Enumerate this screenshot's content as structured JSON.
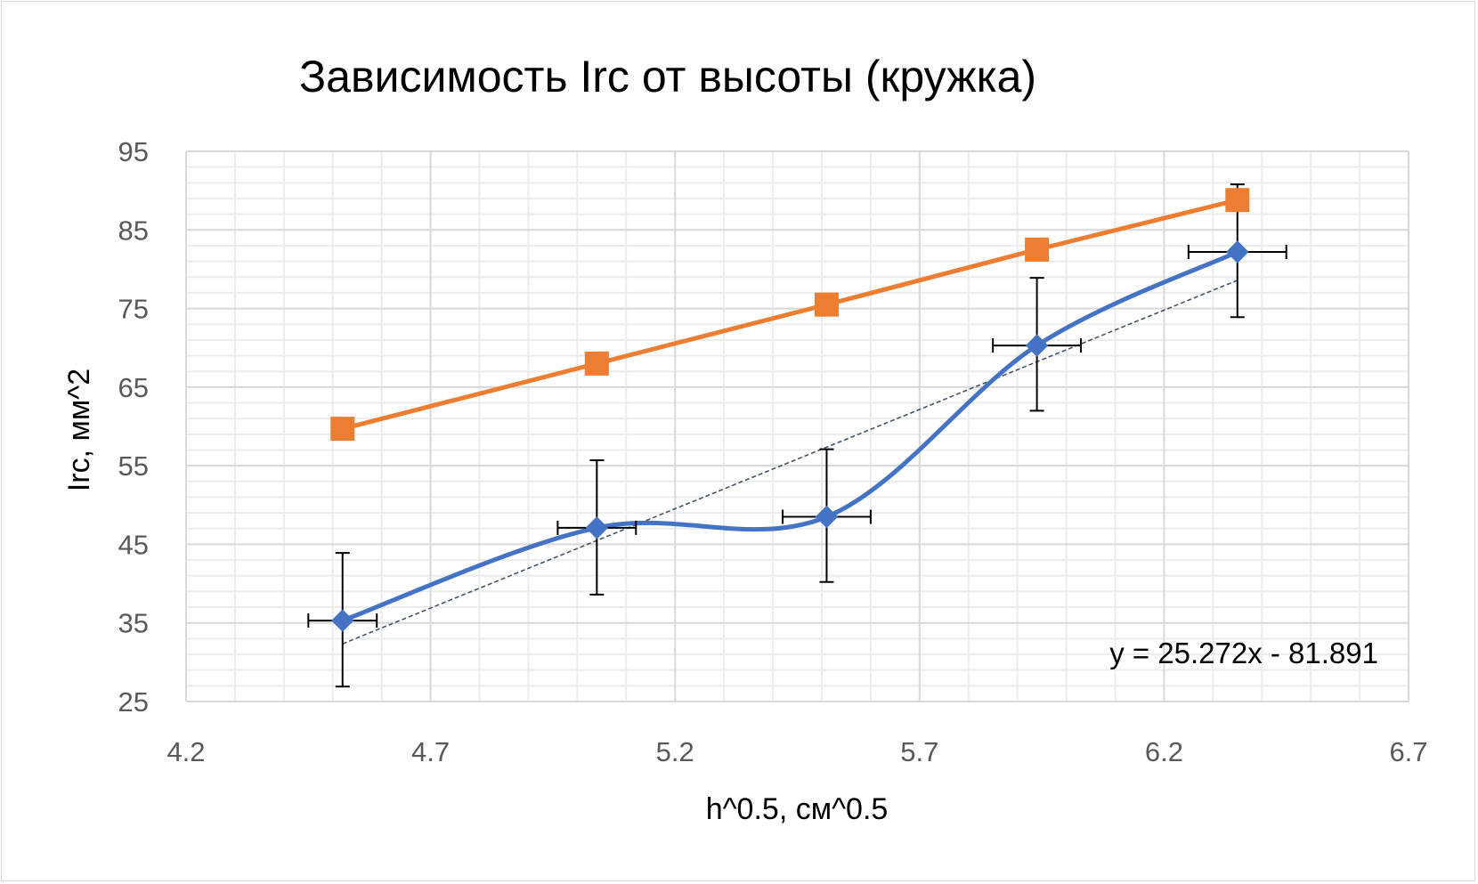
{
  "chart_data": {
    "type": "scatter",
    "title": "Зависимость Irc от высоты (кружка)",
    "xlabel": "h^0.5, см^0.5",
    "ylabel": "Irc, мм^2",
    "xlim": [
      4.2,
      6.7
    ],
    "ylim": [
      25,
      95
    ],
    "x_major_step": 0.5,
    "y_major_step": 10,
    "x_ticks": [
      "4.2",
      "4.7",
      "5.2",
      "5.7",
      "6.2",
      "6.7"
    ],
    "y_ticks": [
      "25",
      "35",
      "45",
      "55",
      "65",
      "75",
      "85",
      "95"
    ],
    "grid": true,
    "legend": "none",
    "series": [
      {
        "marker": "diamond",
        "line": "smooth",
        "color": "#4472c4",
        "x": [
          4.52,
          5.04,
          5.51,
          5.94,
          6.35
        ],
        "y": [
          35.3,
          47.1,
          48.5,
          70.3,
          82.2
        ],
        "x_error": [
          0.07,
          0.08,
          0.09,
          0.09,
          0.1
        ],
        "y_error_plus": [
          8.6,
          8.6,
          8.6,
          8.6,
          8.6
        ],
        "y_error_minus": [
          8.4,
          8.5,
          8.3,
          8.3,
          8.3
        ]
      },
      {
        "marker": "square",
        "line": "straight",
        "color": "#ed7d31",
        "x": [
          4.52,
          5.04,
          5.51,
          5.94,
          6.35
        ],
        "y": [
          59.7,
          68.0,
          75.5,
          82.5,
          88.8
        ]
      }
    ],
    "trendline": {
      "series_index": 0,
      "style": "dashed",
      "color": "#44546a",
      "slope": 25.272,
      "intercept": -81.891,
      "equation_text": "y = 25.272x - 81.891"
    }
  }
}
